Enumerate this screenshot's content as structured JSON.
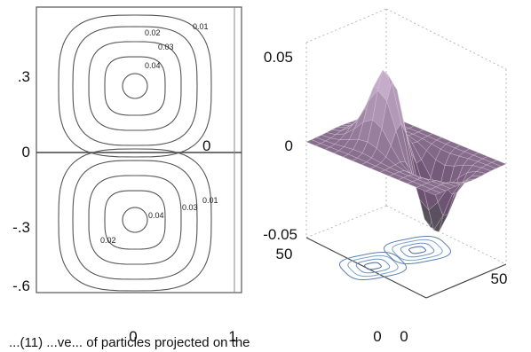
{
  "caption": "...(11) ...ve... of particles projected on the",
  "chart_data": [
    {
      "type": "contour",
      "panel": "left",
      "ylim": [
        -0.6,
        0.5
      ],
      "y_ticks": [
        ".3",
        "0",
        "-.3",
        "-.6"
      ],
      "xlim": [
        -0.5,
        1
      ],
      "x_ticks": [
        "0",
        "1"
      ],
      "frame_corner_label": "0",
      "lobes": [
        {
          "name": "upper",
          "center": [
            0,
            0.27
          ],
          "contour_labels": [
            "0.02",
            "0.01",
            "0.03",
            "0.04"
          ]
        },
        {
          "name": "lower",
          "center": [
            0,
            -0.25
          ],
          "contour_labels": [
            "0.04",
            "0.03",
            "0.01",
            "0.02"
          ]
        }
      ]
    },
    {
      "type": "surface",
      "panel": "right",
      "zlim": [
        -0.05,
        0.05
      ],
      "z_ticks": [
        "0.05",
        "0",
        "-0.05"
      ],
      "y_ticks": [
        "50",
        "0"
      ],
      "x_ticks": [
        "0",
        "50"
      ],
      "surface_color": "#8a7488",
      "contour_projection": true
    }
  ]
}
